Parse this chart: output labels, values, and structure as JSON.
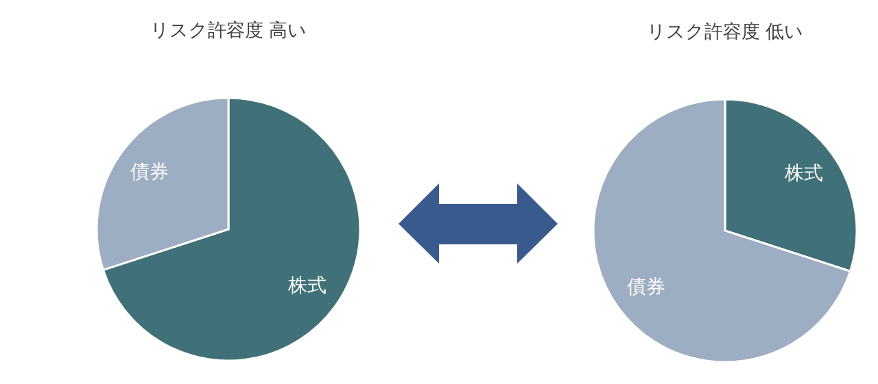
{
  "chart_data": [
    {
      "type": "pie",
      "title": "リスク許容度 高い",
      "categories": [
        "株式",
        "債券"
      ],
      "values": [
        70,
        30
      ],
      "colors": [
        "#417178",
        "#9dadc2"
      ]
    },
    {
      "type": "pie",
      "title": "リスク許容度 低い",
      "categories": [
        "株式",
        "債券"
      ],
      "values": [
        30,
        70
      ],
      "colors": [
        "#417178",
        "#9dadc2"
      ]
    }
  ]
}
